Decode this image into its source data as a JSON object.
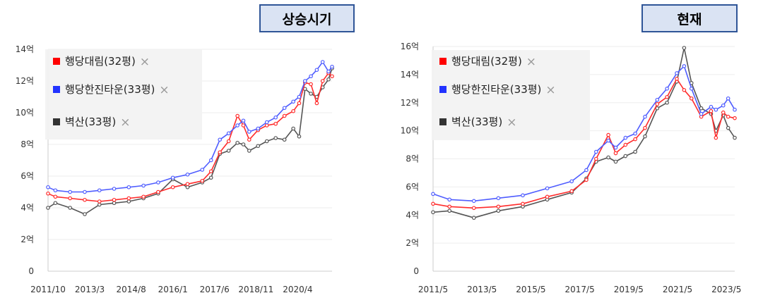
{
  "badges": {
    "left": "상승시기",
    "right": "현재"
  },
  "colors": {
    "red": "#ff2b2b",
    "blue": "#4f5dff",
    "black": "#555555",
    "redMark": "#ff0000",
    "blueMark": "#2233ff",
    "blackMark": "#333333"
  },
  "chart_data": [
    {
      "type": "line",
      "title": "",
      "y_unit": "억",
      "ylim": [
        0,
        14
      ],
      "yticks": [
        0,
        2,
        4,
        6,
        8,
        10,
        12,
        14
      ],
      "ytick_labels": [
        "0",
        "2억",
        "4억",
        "6억",
        "8억",
        "10억",
        "12억",
        "14억"
      ],
      "xlim": [
        2011.75,
        2021.42
      ],
      "xticks": [
        2011.75,
        2013.17,
        2014.58,
        2016.0,
        2017.42,
        2018.83,
        2020.25
      ],
      "xtick_labels": [
        "2011/10",
        "2013/3",
        "2014/8",
        "2016/1",
        "2017/6",
        "2018/11",
        "2020/4"
      ],
      "legend": {
        "position": "top-left"
      },
      "series": [
        {
          "name": "행당대림(32평)",
          "color": "red",
          "x": [
            2011.75,
            2012.0,
            2012.5,
            2013.0,
            2013.5,
            2014.0,
            2014.5,
            2015.0,
            2015.5,
            2016.0,
            2016.5,
            2017.0,
            2017.3,
            2017.6,
            2017.9,
            2018.2,
            2018.4,
            2018.6,
            2018.9,
            2019.2,
            2019.5,
            2019.8,
            2020.1,
            2020.3,
            2020.5,
            2020.7,
            2020.9,
            2021.1,
            2021.3,
            2021.42
          ],
          "y": [
            4.9,
            4.7,
            4.6,
            4.5,
            4.4,
            4.5,
            4.6,
            4.7,
            5.0,
            5.3,
            5.5,
            5.7,
            6.3,
            7.5,
            8.2,
            9.8,
            9.2,
            8.3,
            8.9,
            9.2,
            9.3,
            9.8,
            10.1,
            10.6,
            11.9,
            11.8,
            10.6,
            12.0,
            12.5,
            12.3
          ]
        },
        {
          "name": "행당한진타운(33평)",
          "color": "blue",
          "x": [
            2011.75,
            2012.0,
            2012.5,
            2013.0,
            2013.5,
            2014.0,
            2014.5,
            2015.0,
            2015.5,
            2016.0,
            2016.5,
            2017.0,
            2017.3,
            2017.6,
            2017.9,
            2018.2,
            2018.4,
            2018.6,
            2018.9,
            2019.2,
            2019.5,
            2019.8,
            2020.1,
            2020.3,
            2020.5,
            2020.7,
            2020.9,
            2021.1,
            2021.3,
            2021.42
          ],
          "y": [
            5.3,
            5.1,
            5.0,
            5.0,
            5.1,
            5.2,
            5.3,
            5.4,
            5.6,
            5.9,
            6.1,
            6.4,
            7.0,
            8.3,
            8.7,
            9.2,
            9.5,
            8.8,
            9.0,
            9.4,
            9.7,
            10.3,
            10.7,
            11.0,
            12.0,
            12.3,
            12.7,
            13.2,
            12.6,
            12.9
          ]
        },
        {
          "name": "벽산(33평)",
          "color": "black",
          "x": [
            2011.75,
            2012.0,
            2012.5,
            2013.0,
            2013.5,
            2014.0,
            2014.5,
            2015.0,
            2015.5,
            2016.0,
            2016.5,
            2017.0,
            2017.3,
            2017.6,
            2017.9,
            2018.2,
            2018.4,
            2018.6,
            2018.9,
            2019.2,
            2019.5,
            2019.8,
            2020.1,
            2020.3,
            2020.5,
            2020.7,
            2020.9,
            2021.1,
            2021.3,
            2021.42
          ],
          "y": [
            4.0,
            4.3,
            4.0,
            3.6,
            4.2,
            4.3,
            4.4,
            4.6,
            4.9,
            5.8,
            5.3,
            5.6,
            5.9,
            7.4,
            7.6,
            8.1,
            8.0,
            7.6,
            7.9,
            8.2,
            8.4,
            8.3,
            9.0,
            8.5,
            11.5,
            11.2,
            11.0,
            11.6,
            12.1,
            12.8
          ]
        }
      ]
    },
    {
      "type": "line",
      "title": "",
      "y_unit": "억",
      "ylim": [
        0,
        16
      ],
      "yticks": [
        0,
        2,
        4,
        6,
        8,
        10,
        12,
        14,
        16
      ],
      "ytick_labels": [
        "0",
        "2억",
        "4억",
        "6억",
        "8억",
        "10억",
        "12억",
        "14억",
        "16억"
      ],
      "xlim": [
        2011.33,
        2023.67
      ],
      "xticks": [
        2011.33,
        2013.33,
        2015.33,
        2017.33,
        2019.33,
        2021.33,
        2023.33
      ],
      "xtick_labels": [
        "2011/5",
        "2013/5",
        "2015/5",
        "2017/5",
        "2019/5",
        "2021/5",
        "2023/5"
      ],
      "legend": {
        "position": "top-left"
      },
      "series": [
        {
          "name": "행당대림(32평)",
          "color": "red",
          "x": [
            2011.33,
            2012.0,
            2013.0,
            2014.0,
            2015.0,
            2016.0,
            2017.0,
            2017.6,
            2018.0,
            2018.5,
            2018.8,
            2019.2,
            2019.6,
            2020.0,
            2020.5,
            2020.9,
            2021.3,
            2021.6,
            2021.9,
            2022.3,
            2022.7,
            2022.9,
            2023.2,
            2023.4,
            2023.67
          ],
          "y": [
            4.8,
            4.6,
            4.5,
            4.6,
            4.8,
            5.3,
            5.7,
            6.5,
            8.0,
            9.7,
            8.4,
            9.0,
            9.4,
            10.2,
            11.9,
            12.4,
            13.7,
            12.9,
            12.3,
            11.0,
            11.4,
            9.5,
            11.3,
            11.0,
            10.9
          ]
        },
        {
          "name": "행당한진타운(33평)",
          "color": "blue",
          "x": [
            2011.33,
            2012.0,
            2013.0,
            2014.0,
            2015.0,
            2016.0,
            2017.0,
            2017.6,
            2018.0,
            2018.5,
            2018.8,
            2019.2,
            2019.6,
            2020.0,
            2020.5,
            2020.9,
            2021.3,
            2021.6,
            2021.9,
            2022.3,
            2022.7,
            2022.9,
            2023.2,
            2023.4,
            2023.67
          ],
          "y": [
            5.5,
            5.1,
            5.0,
            5.2,
            5.4,
            5.9,
            6.4,
            7.2,
            8.5,
            9.3,
            8.8,
            9.5,
            9.8,
            11.0,
            12.2,
            13.0,
            14.1,
            14.6,
            13.0,
            11.2,
            11.7,
            11.5,
            11.8,
            12.3,
            11.5
          ]
        },
        {
          "name": "벽산(33평)",
          "color": "black",
          "x": [
            2011.33,
            2012.0,
            2013.0,
            2014.0,
            2015.0,
            2016.0,
            2017.0,
            2017.6,
            2018.0,
            2018.5,
            2018.8,
            2019.2,
            2019.6,
            2020.0,
            2020.5,
            2020.9,
            2021.3,
            2021.6,
            2021.9,
            2022.3,
            2022.7,
            2022.9,
            2023.2,
            2023.4,
            2023.67
          ],
          "y": [
            4.2,
            4.3,
            3.8,
            4.3,
            4.6,
            5.1,
            5.6,
            6.6,
            7.8,
            8.1,
            7.8,
            8.2,
            8.5,
            9.6,
            11.6,
            12.0,
            13.5,
            15.9,
            13.4,
            11.6,
            11.2,
            10.0,
            11.1,
            10.2,
            9.5
          ]
        }
      ]
    }
  ]
}
